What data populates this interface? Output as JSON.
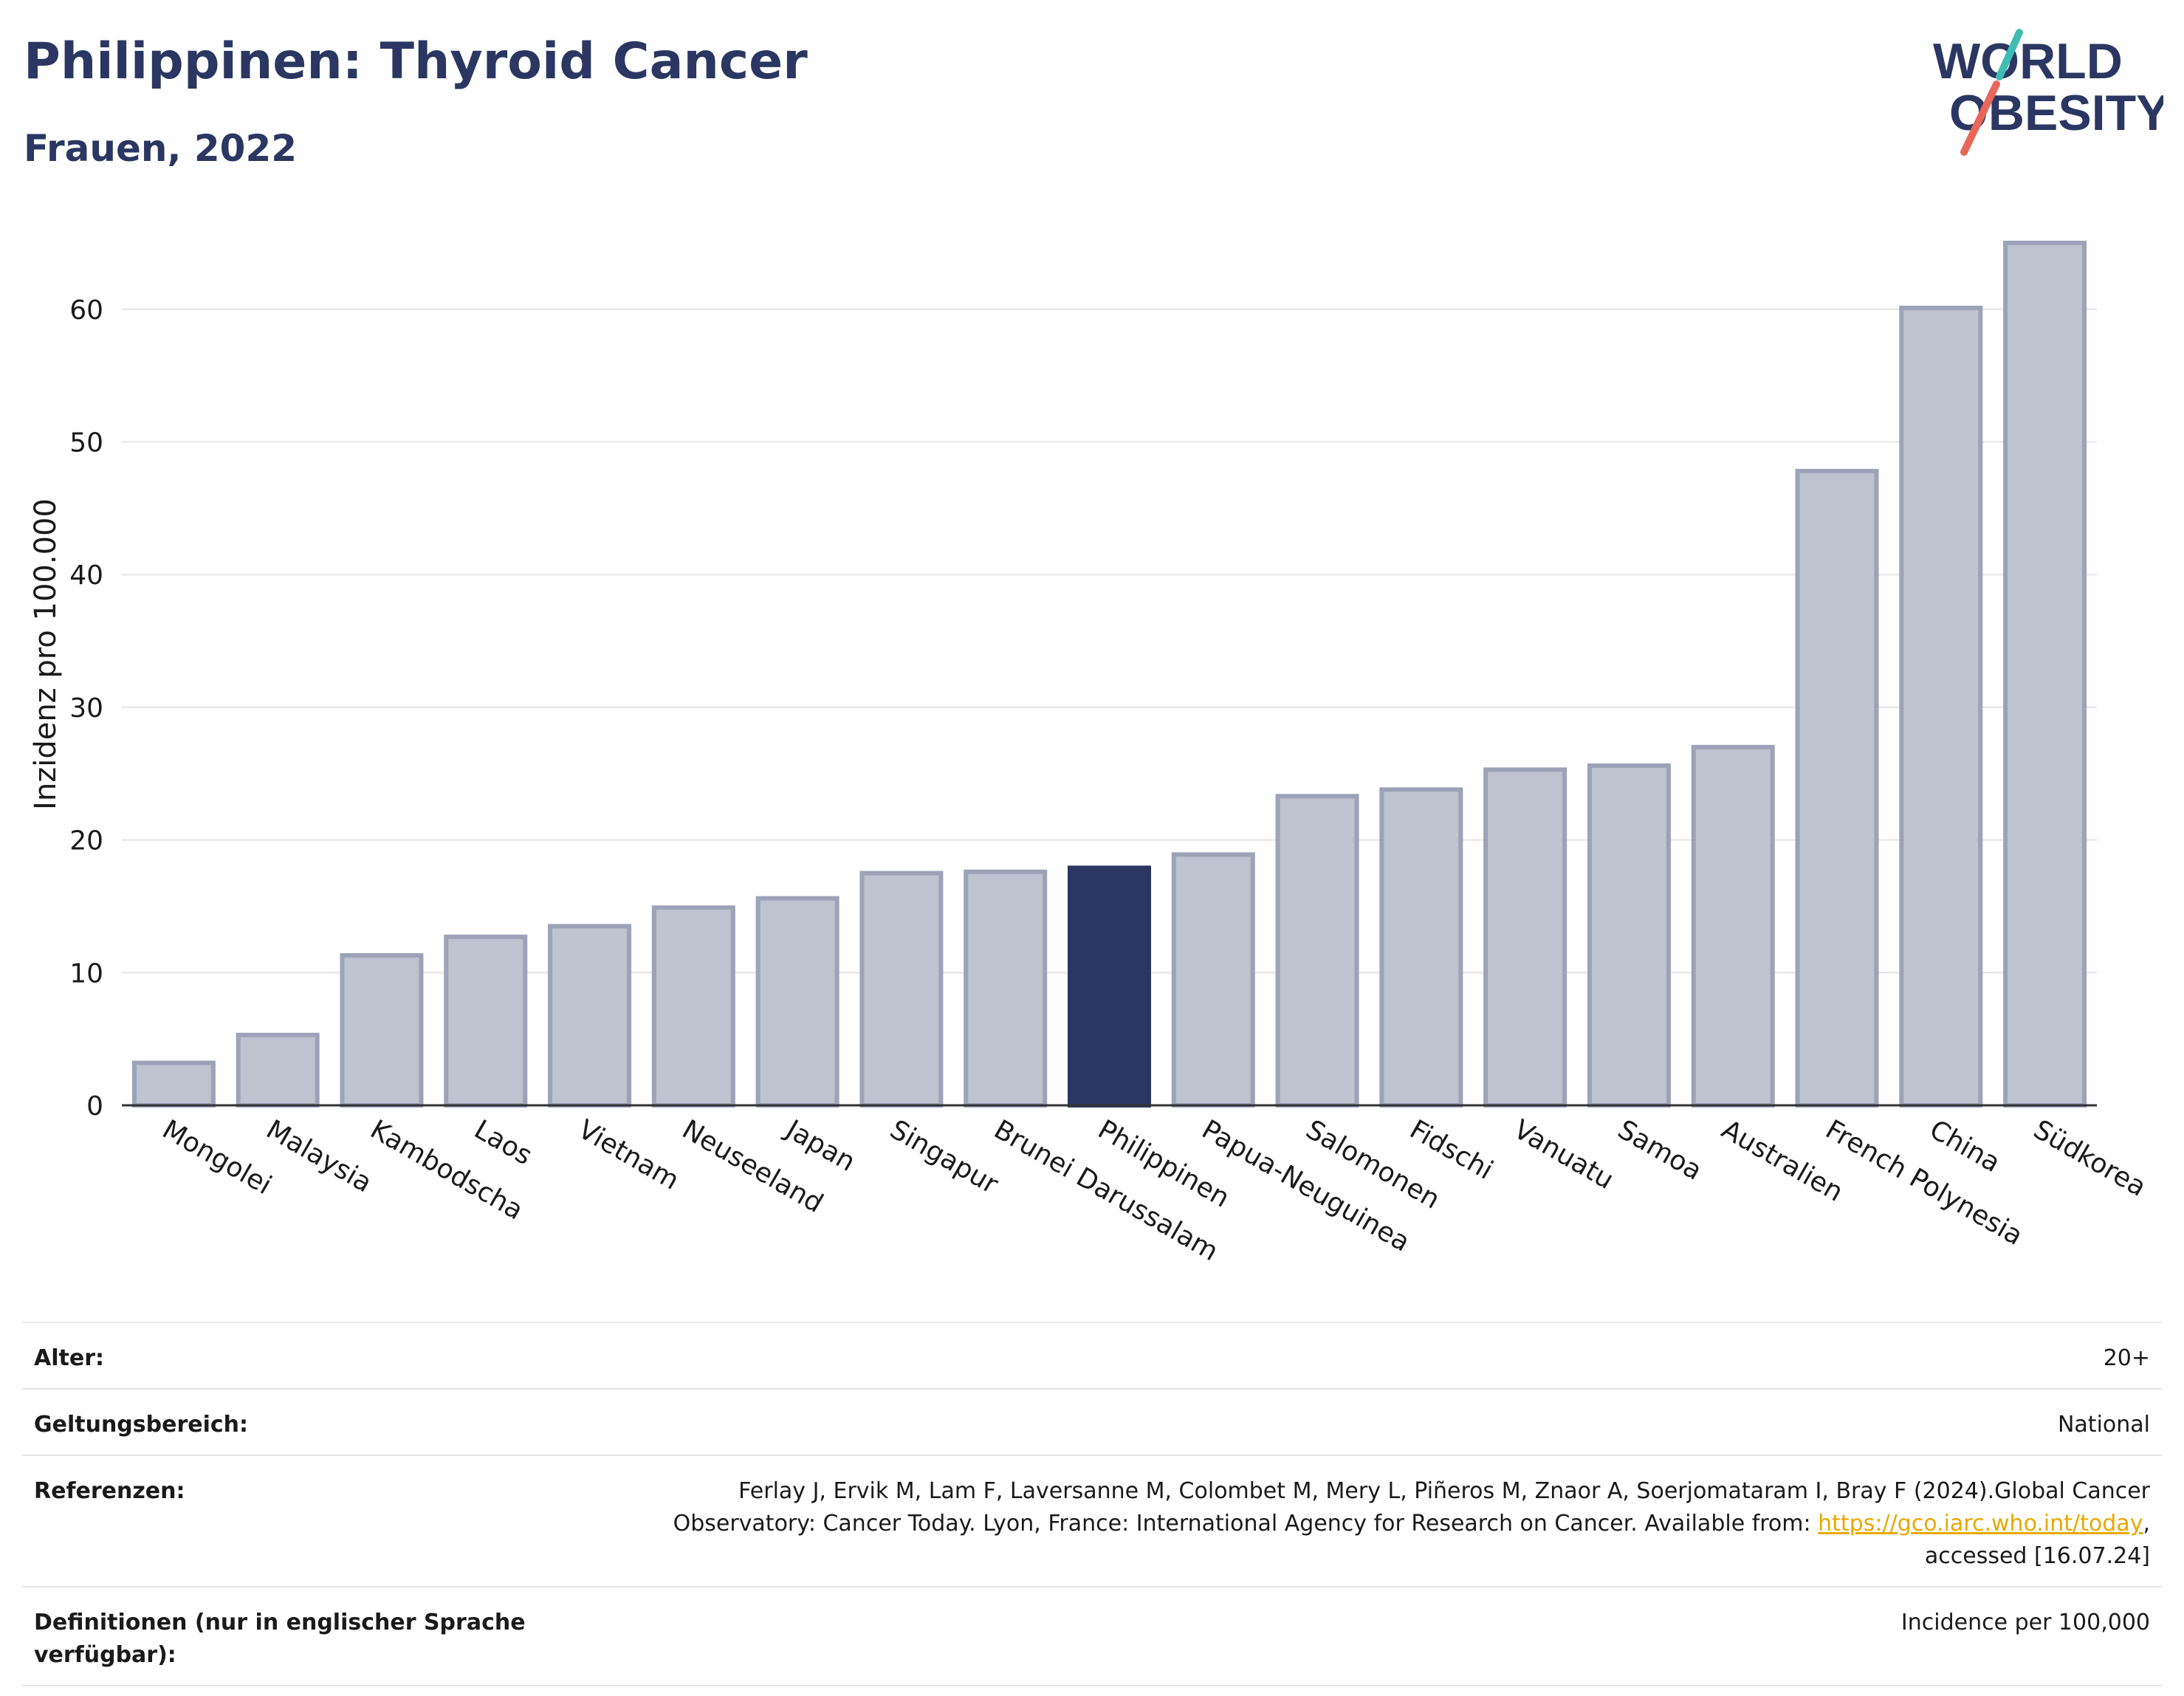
{
  "header": {
    "title": "Philippinen: Thyroid Cancer",
    "subtitle": "Frauen, 2022",
    "logo_line1": "WORLD",
    "logo_line2": "OBESITY"
  },
  "colors": {
    "bar": "#bfc2cf",
    "bar_border": "#9da2b8",
    "highlight": "#2b3762",
    "axis": "#333333",
    "grid": "#e5e5e5",
    "logo_teal": "#3fbdb4",
    "logo_red": "#e8675a"
  },
  "chart_data": {
    "type": "bar",
    "ylabel": "Inzidenz pro 100.000",
    "ylim": [
      0,
      66
    ],
    "yticks": [
      0,
      10,
      20,
      30,
      40,
      50,
      60
    ],
    "highlight": "Philippinen",
    "categories": [
      "Mongolei",
      "Malaysia",
      "Kambodscha",
      "Laos",
      "Vietnam",
      "Neuseeland",
      "Japan",
      "Singapur",
      "Brunei Darussalam",
      "Philippinen",
      "Papua-Neuguinea",
      "Salomonen",
      "Fidschi",
      "Vanuatu",
      "Samoa",
      "Australien",
      "French Polynesia",
      "China",
      "Südkorea"
    ],
    "values": [
      3.2,
      5.3,
      11.3,
      12.7,
      13.5,
      14.9,
      15.6,
      17.5,
      17.6,
      17.9,
      18.9,
      23.3,
      23.8,
      25.3,
      25.6,
      27.0,
      47.8,
      60.1,
      65.0
    ]
  },
  "meta": {
    "rows": [
      {
        "label": "Alter:",
        "value": "20+"
      },
      {
        "label": "Geltungsbereich:",
        "value": "National"
      }
    ],
    "references_label": "Referenzen:",
    "references_text1": "Ferlay J, Ervik M, Lam F, Laversanne M, Colombet M, Mery L, Piñeros M, Znaor A, Soerjomataram I, Bray F (2024).Global Cancer Observatory: Cancer Today. Lyon, France: International Agency for Research on Cancer. Available from: ",
    "references_link": "https://gco.iarc.who.int/today",
    "references_text2": ", accessed [16.07.24]",
    "definitions_label": "Definitionen (nur in englischer Sprache verfügbar):",
    "definitions_value": "Incidence per 100,000"
  }
}
